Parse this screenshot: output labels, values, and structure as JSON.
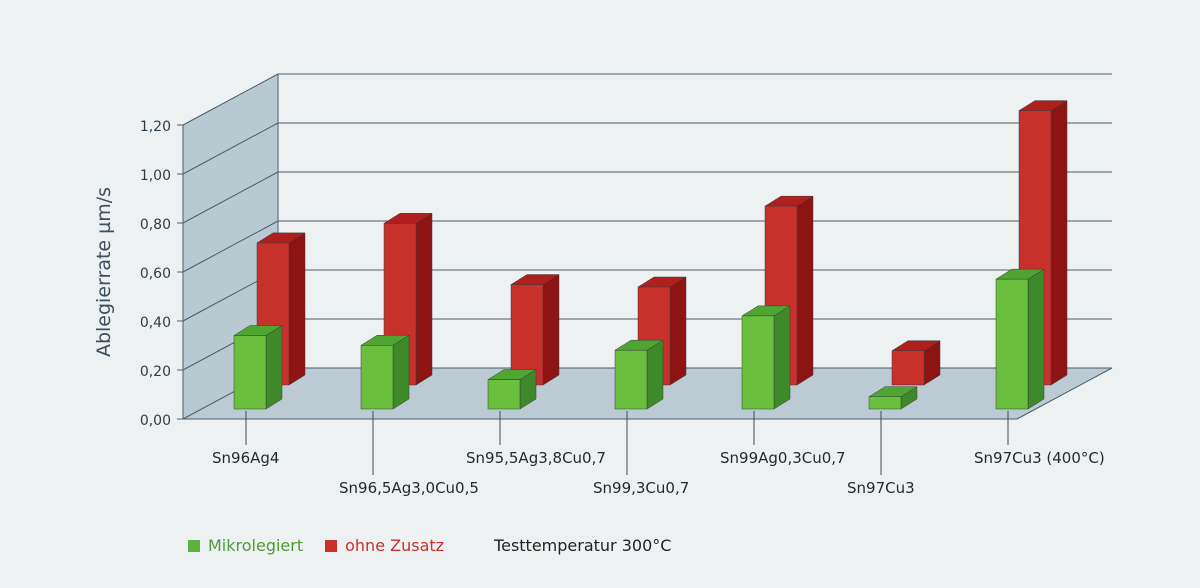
{
  "chart_data": {
    "type": "bar",
    "ylabel": "Ablegierrate   µm/s",
    "ylim": [
      0,
      1.2
    ],
    "yticks": [
      "0,00",
      "0,20",
      "0,40",
      "0,60",
      "0,80",
      "1,00",
      "1,20"
    ],
    "categories": [
      "Sn96Ag4",
      "Sn96,5Ag3,0Cu0,5",
      "Sn95,5Ag3,8Cu0,7",
      "Sn99,3Cu0,7",
      "Sn99Ag0,3Cu0,7",
      "Sn97Cu3",
      "Sn97Cu3 (400°C)"
    ],
    "series": [
      {
        "name": "Mikrolegiert",
        "color": "#6abf3f",
        "values": [
          0.3,
          0.26,
          0.12,
          0.24,
          0.38,
          0.05,
          0.53
        ]
      },
      {
        "name": "ohne Zusatz",
        "color": "#c8302b",
        "values": [
          0.58,
          0.66,
          0.41,
          0.4,
          0.73,
          0.14,
          1.12
        ]
      }
    ],
    "grid": true,
    "legend": "bottom-left",
    "note": "Testtemperatur 300°C"
  },
  "legend": {
    "green_label": "Mikrolegiert",
    "red_label": "ohne Zusatz",
    "note": "Testtemperatur 300°C"
  }
}
